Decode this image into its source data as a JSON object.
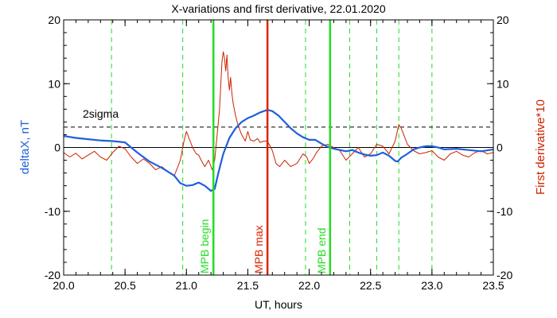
{
  "chart_data": {
    "type": "line",
    "title": "X-variations and first derivative, 22.01.2020",
    "xlabel": "UT, hours",
    "ylabel_left": "deltaX, nT",
    "ylabel_right": "First derivative*10",
    "xlim": [
      20.0,
      23.5
    ],
    "ylim": [
      -20,
      20
    ],
    "x_ticks": [
      "20.0",
      "20.5",
      "21.0",
      "21.5",
      "22.0",
      "22.5",
      "23.0",
      "23.5"
    ],
    "y_ticks": [
      "-20",
      "-10",
      "0",
      "10",
      "20"
    ],
    "colors": {
      "deltaX": "#1f5fdd",
      "derivative": "#cc2200",
      "event_green": "#22dd22",
      "event_red": "#dd2200",
      "axis": "#000000"
    },
    "threshold": {
      "label": "2sigma",
      "value": 3.2
    },
    "event_lines": [
      {
        "label": "MPB begin",
        "x": 21.22,
        "color": "#22dd22"
      },
      {
        "label": "MPB max",
        "x": 21.66,
        "color": "#dd2200"
      },
      {
        "label": "MPB end",
        "x": 22.17,
        "color": "#22dd22"
      }
    ],
    "marker_lines_x": [
      20.39,
      20.97,
      21.97,
      22.33,
      22.55,
      22.73,
      23.0
    ],
    "series": [
      {
        "key": "deltaX",
        "x": [
          20.0,
          20.1,
          20.2,
          20.3,
          20.4,
          20.5,
          20.6,
          20.7,
          20.8,
          20.9,
          20.95,
          21.0,
          21.05,
          21.1,
          21.15,
          21.2,
          21.23,
          21.26,
          21.3,
          21.35,
          21.4,
          21.45,
          21.5,
          21.55,
          21.6,
          21.66,
          21.7,
          21.75,
          21.8,
          21.85,
          21.9,
          21.95,
          22.0,
          22.05,
          22.1,
          22.15,
          22.2,
          22.25,
          22.3,
          22.35,
          22.4,
          22.45,
          22.5,
          22.55,
          22.6,
          22.65,
          22.7,
          22.72,
          22.75,
          22.8,
          22.85,
          22.9,
          22.95,
          23.0,
          23.05,
          23.1,
          23.2,
          23.3,
          23.4,
          23.5
        ],
        "y": [
          1.8,
          1.5,
          1.3,
          1.1,
          1.0,
          0.8,
          -0.8,
          -2.2,
          -3.2,
          -4.4,
          -5.6,
          -6.0,
          -5.9,
          -5.5,
          -6.0,
          -6.8,
          -6.5,
          -4.0,
          -1.0,
          1.5,
          3.0,
          4.0,
          4.6,
          5.0,
          5.5,
          5.9,
          5.7,
          5.0,
          4.0,
          3.0,
          2.2,
          1.6,
          1.2,
          1.2,
          0.6,
          0.1,
          -0.2,
          -0.4,
          -0.6,
          -0.4,
          -0.8,
          -1.1,
          -1.3,
          -1.2,
          -0.8,
          -1.3,
          -2.1,
          -2.2,
          -1.6,
          -1.0,
          -0.3,
          0.0,
          0.2,
          0.2,
          0.0,
          -0.3,
          -0.2,
          -0.4,
          -0.6,
          -0.3
        ]
      },
      {
        "key": "derivative",
        "x": [
          20.0,
          20.05,
          20.1,
          20.15,
          20.2,
          20.25,
          20.3,
          20.35,
          20.4,
          20.45,
          20.5,
          20.55,
          20.6,
          20.65,
          20.7,
          20.75,
          20.8,
          20.85,
          20.9,
          20.95,
          20.98,
          21.0,
          21.02,
          21.05,
          21.08,
          21.1,
          21.12,
          21.15,
          21.18,
          21.21,
          21.23,
          21.25,
          21.27,
          21.28,
          21.29,
          21.3,
          21.31,
          21.32,
          21.33,
          21.34,
          21.35,
          21.36,
          21.37,
          21.38,
          21.4,
          21.42,
          21.45,
          21.48,
          21.5,
          21.52,
          21.55,
          21.58,
          21.6,
          21.63,
          21.66,
          21.7,
          21.73,
          21.76,
          21.8,
          21.85,
          21.9,
          21.95,
          21.98,
          22.0,
          22.03,
          22.06,
          22.1,
          22.15,
          22.2,
          22.25,
          22.3,
          22.35,
          22.4,
          22.45,
          22.5,
          22.55,
          22.6,
          22.65,
          22.7,
          22.73,
          22.75,
          22.8,
          22.85,
          22.9,
          22.95,
          23.0,
          23.05,
          23.1,
          23.15,
          23.2,
          23.25,
          23.3,
          23.35,
          23.4,
          23.45,
          23.5
        ],
        "y": [
          -0.8,
          -1.5,
          -0.9,
          -1.8,
          -1.2,
          -0.6,
          -1.5,
          -2.0,
          -0.8,
          0.2,
          -0.2,
          -1.5,
          -2.5,
          -1.8,
          -2.5,
          -3.5,
          -3.0,
          -3.8,
          -4.5,
          -2.0,
          1.0,
          2.5,
          1.5,
          0.0,
          -1.0,
          -1.2,
          -2.0,
          -3.0,
          -2.0,
          -3.5,
          -2.0,
          2.0,
          6.0,
          10.0,
          13.5,
          15.0,
          14.0,
          12.0,
          14.5,
          11.0,
          9.0,
          11.0,
          8.5,
          7.0,
          5.0,
          3.5,
          2.0,
          1.0,
          2.5,
          1.2,
          1.0,
          1.4,
          0.8,
          1.0,
          1.0,
          -0.5,
          -2.5,
          -3.0,
          -2.0,
          -3.0,
          -2.5,
          -1.0,
          -1.5,
          -2.5,
          -1.8,
          -0.8,
          0.2,
          0.5,
          0.0,
          -0.5,
          -2.0,
          -1.0,
          0.0,
          -1.5,
          -1.0,
          0.5,
          0.2,
          -1.0,
          1.0,
          3.6,
          3.0,
          0.5,
          -0.5,
          -1.0,
          -0.8,
          -0.5,
          -1.5,
          -2.0,
          -1.0,
          -0.6,
          -1.2,
          -1.5,
          -0.8,
          -0.5,
          -1.0,
          -0.8
        ]
      }
    ]
  }
}
